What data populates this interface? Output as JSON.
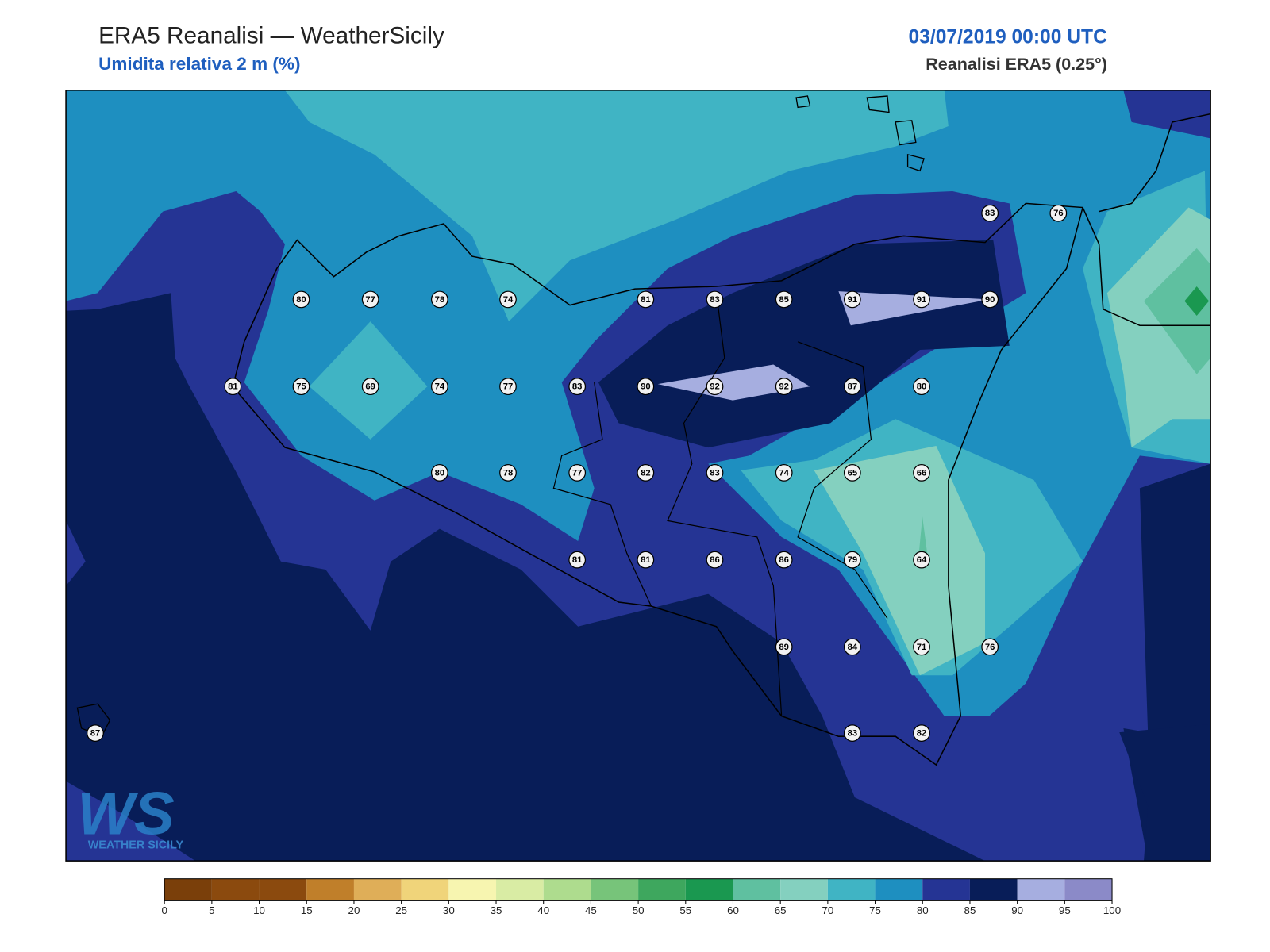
{
  "header": {
    "title": "ERA5 Reanalisi — WeatherSicily",
    "subtitle": "Umidita relativa 2 m (%)",
    "datetime": "03/07/2019 00:00 UTC",
    "source": "Reanalisi ERA5 (0.25°)"
  },
  "stations": [
    80,
    77,
    78,
    74,
    81,
    83,
    85,
    91,
    91,
    90,
    83,
    76,
    81,
    75,
    69,
    74,
    77,
    83,
    90,
    92,
    92,
    87,
    80,
    80,
    78,
    77,
    82,
    83,
    74,
    65,
    66,
    81,
    81,
    86,
    86,
    79,
    64,
    89,
    84,
    71,
    76,
    87,
    83,
    82
  ],
  "colorbar": {
    "ticks": [
      0,
      5,
      10,
      15,
      20,
      25,
      30,
      35,
      40,
      45,
      50,
      55,
      60,
      65,
      70,
      75,
      80,
      85,
      90,
      95,
      100
    ],
    "colors": [
      "#7a3f0a",
      "#8b4a0e",
      "#8b4a0e",
      "#c07f2a",
      "#dfae58",
      "#f0d47a",
      "#f7f5b0",
      "#d9eca4",
      "#aedc8e",
      "#77c47a",
      "#3ea75e",
      "#1a9850",
      "#5fc0a0",
      "#84d0bf",
      "#40b4c4",
      "#1e8fc0",
      "#253494",
      "#081d58",
      "#a6aee0",
      "#8b8ac8"
    ]
  },
  "logo": {
    "mark": "WS",
    "brand": "WEATHER SICILY"
  }
}
